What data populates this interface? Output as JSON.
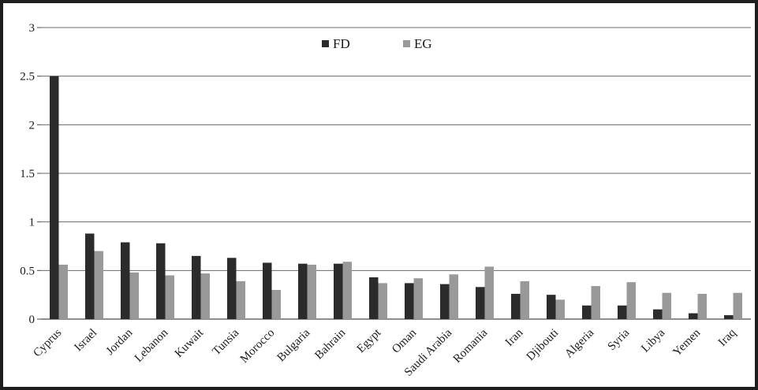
{
  "chart_data": {
    "type": "bar",
    "categories": [
      "Cyprus",
      "Israel",
      "Jordan",
      "Lebanon",
      "Kuwait",
      "Tunsia",
      "Morocco",
      "Bulgaria",
      "Bahrain",
      "Egypt",
      "Oman",
      "Saudi Arabia",
      "Romania",
      "Iran",
      "Djibouti",
      "Algeria",
      "Syria",
      "Libya",
      "Yemen",
      "Iraq"
    ],
    "series": [
      {
        "name": "FD",
        "color": "#2b2b2b",
        "values": [
          2.5,
          0.88,
          0.79,
          0.78,
          0.65,
          0.63,
          0.58,
          0.57,
          0.57,
          0.43,
          0.37,
          0.36,
          0.33,
          0.26,
          0.25,
          0.14,
          0.14,
          0.1,
          0.06,
          0.04
        ]
      },
      {
        "name": "EG",
        "color": "#999999",
        "values": [
          0.56,
          0.7,
          0.48,
          0.45,
          0.47,
          0.39,
          0.3,
          0.56,
          0.59,
          0.37,
          0.42,
          0.46,
          0.54,
          0.39,
          0.2,
          0.34,
          0.38,
          0.27,
          0.26,
          0.27
        ]
      }
    ],
    "yticks": [
      "0",
      "0.5",
      "1",
      "1.5",
      "2",
      "2.5",
      "3"
    ],
    "ylim": [
      0,
      3
    ],
    "grid": true,
    "legend": "top-center"
  }
}
